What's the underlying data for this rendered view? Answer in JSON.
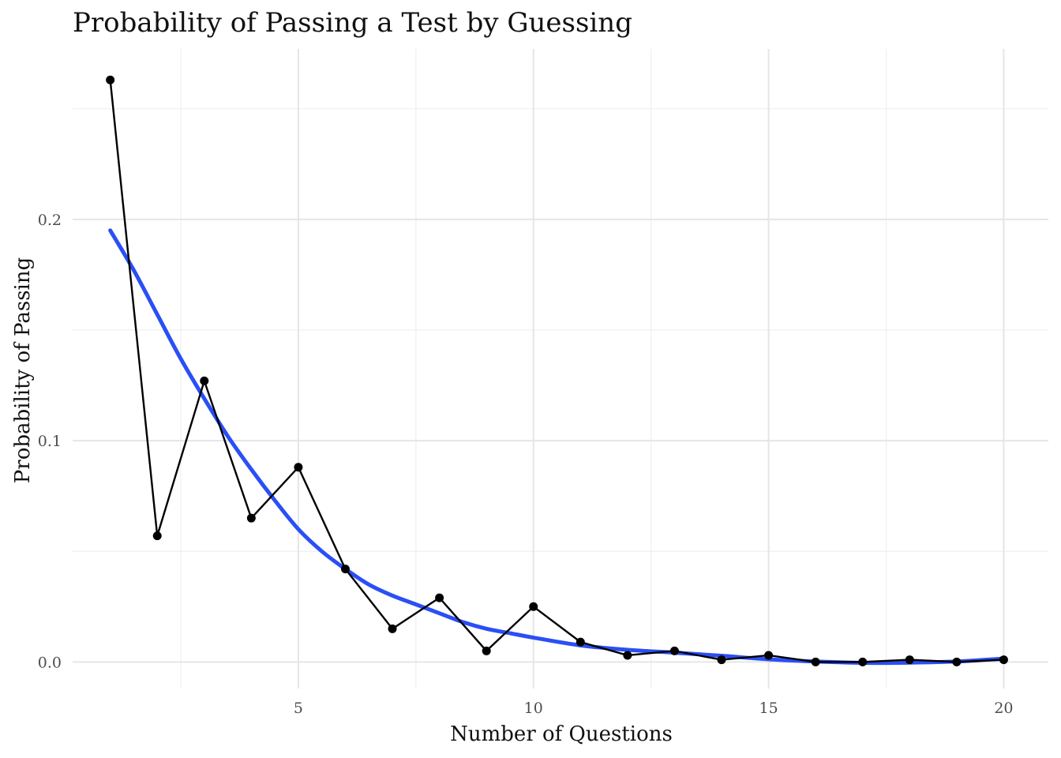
{
  "chart_data": {
    "type": "line",
    "title": "Probability of Passing a Test by Guessing",
    "xlabel": "Number of Questions",
    "ylabel": "Probability of Passing",
    "xlim": [
      0.2,
      20.95
    ],
    "ylim": [
      -0.012,
      0.277
    ],
    "x_ticks": [
      5,
      10,
      15,
      20
    ],
    "x_tick_labels": [
      "5",
      "10",
      "15",
      "20"
    ],
    "x_minor_ticks": [
      2.5,
      7.5,
      12.5,
      17.5
    ],
    "y_ticks": [
      0.0,
      0.1,
      0.2
    ],
    "y_tick_labels": [
      "0.0",
      "0.1",
      "0.2"
    ],
    "y_minor_ticks": [
      0.05,
      0.15,
      0.25
    ],
    "grid": true,
    "legend": "none",
    "series": [
      {
        "kind": "line+points",
        "color": "#000000",
        "x": [
          1,
          2,
          3,
          4,
          5,
          6,
          7,
          8,
          9,
          10,
          11,
          12,
          13,
          14,
          15,
          16,
          17,
          18,
          19,
          20
        ],
        "y": [
          0.263,
          0.057,
          0.127,
          0.065,
          0.088,
          0.042,
          0.015,
          0.029,
          0.005,
          0.025,
          0.009,
          0.003,
          0.005,
          0.001,
          0.003,
          0.0,
          0.0,
          0.001,
          0.0,
          0.001
        ]
      },
      {
        "kind": "smooth",
        "color": "#2a4ff5",
        "x": [
          1,
          1.5,
          2,
          2.5,
          3,
          3.5,
          4,
          4.5,
          5,
          5.5,
          6,
          6.5,
          7,
          7.5,
          8,
          8.5,
          9,
          9.5,
          10,
          11,
          12,
          13,
          14,
          15,
          16,
          17,
          18,
          19,
          20
        ],
        "y": [
          0.195,
          0.177,
          0.157,
          0.137,
          0.119,
          0.102,
          0.087,
          0.073,
          0.06,
          0.05,
          0.042,
          0.035,
          0.03,
          0.026,
          0.022,
          0.018,
          0.015,
          0.013,
          0.011,
          0.0075,
          0.0055,
          0.0042,
          0.0028,
          0.0012,
          0.0002,
          -0.0004,
          -0.0003,
          0.0002,
          0.0015
        ]
      }
    ]
  }
}
